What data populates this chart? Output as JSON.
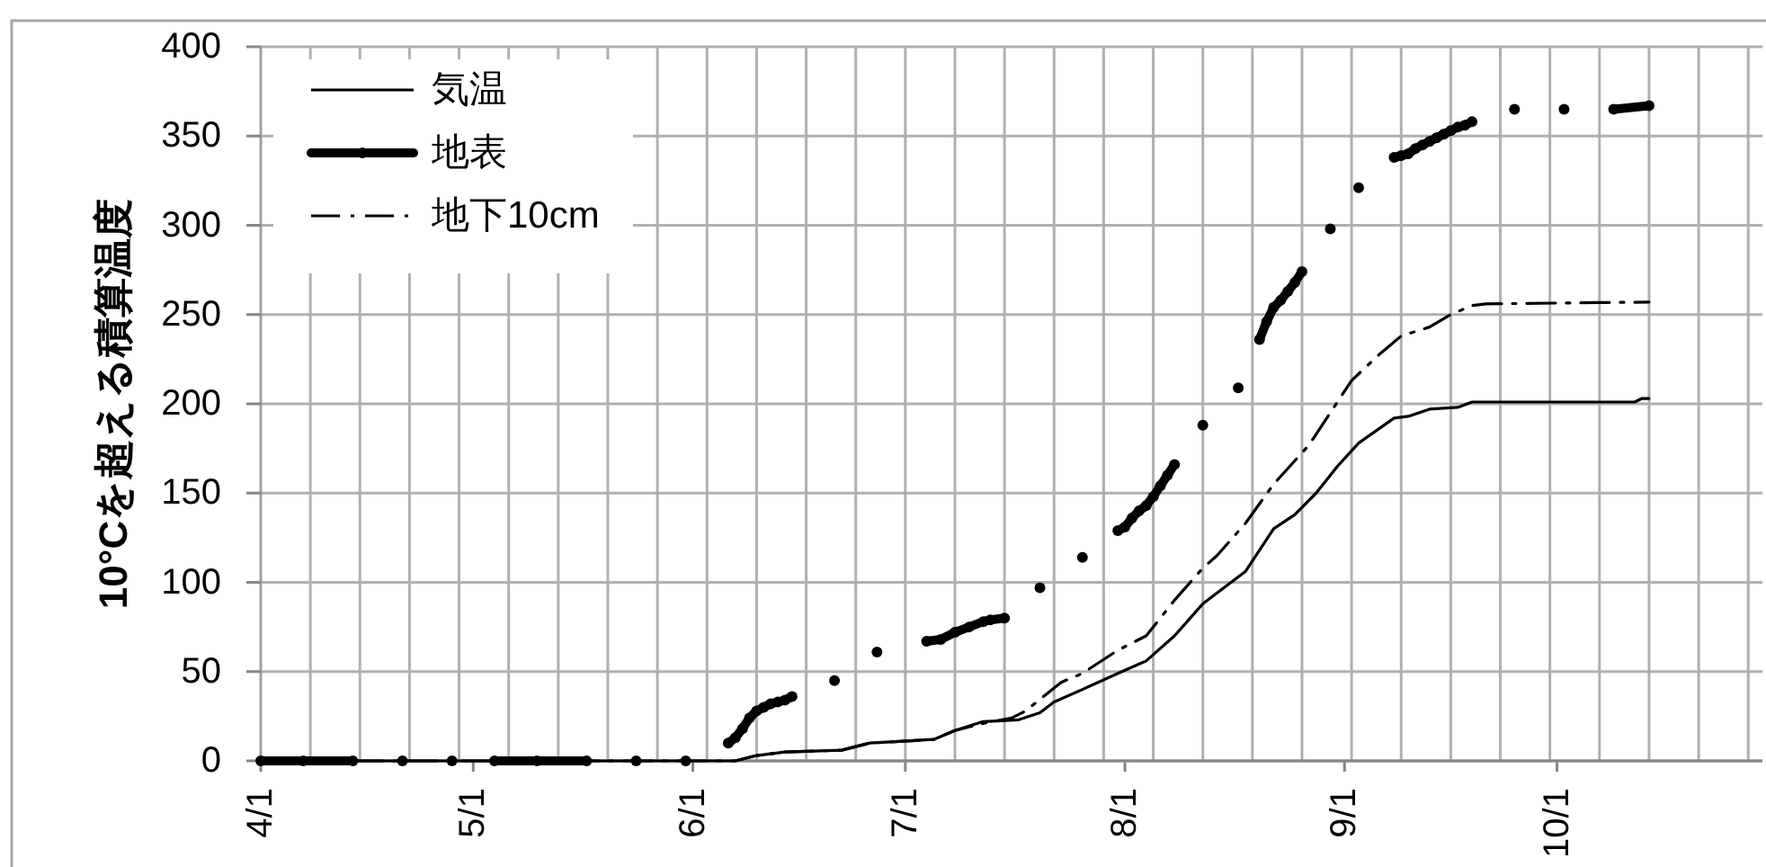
{
  "chart_data": {
    "type": "line",
    "ylabel": "10°Cを超える積算温度",
    "xlim": [
      "--04-01",
      "--10-30"
    ],
    "ylim": [
      0,
      400
    ],
    "yticks": [
      0,
      50,
      100,
      150,
      200,
      250,
      300,
      350,
      400
    ],
    "xticks": [
      {
        "value": "--04-01",
        "label": "4/1"
      },
      {
        "value": "--04-08",
        "label": null
      },
      {
        "value": "--04-15",
        "label": null
      },
      {
        "value": "--04-22",
        "label": null
      },
      {
        "value": "--04-29",
        "label": null
      },
      {
        "value": "--05-01",
        "label": "5/1"
      },
      {
        "value": "--05-06",
        "label": null
      },
      {
        "value": "--05-13",
        "label": null
      },
      {
        "value": "--05-20",
        "label": null
      },
      {
        "value": "--05-27",
        "label": null
      },
      {
        "value": "--06-01",
        "label": "6/1"
      },
      {
        "value": "--06-03",
        "label": null
      },
      {
        "value": "--06-10",
        "label": null
      },
      {
        "value": "--06-17",
        "label": null
      },
      {
        "value": "--06-24",
        "label": null
      },
      {
        "value": "--07-01",
        "label": "7/1"
      },
      {
        "value": "--07-01",
        "label": null
      },
      {
        "value": "--07-08",
        "label": null
      },
      {
        "value": "--07-15",
        "label": null
      },
      {
        "value": "--07-22",
        "label": null
      },
      {
        "value": "--07-29",
        "label": null
      },
      {
        "value": "--08-01",
        "label": "8/1"
      },
      {
        "value": "--08-05",
        "label": null
      },
      {
        "value": "--08-12",
        "label": null
      },
      {
        "value": "--08-19",
        "label": null
      },
      {
        "value": "--08-26",
        "label": null
      },
      {
        "value": "--09-01",
        "label": "9/1"
      },
      {
        "value": "--09-02",
        "label": null
      },
      {
        "value": "--09-09",
        "label": null
      },
      {
        "value": "--09-16",
        "label": null
      },
      {
        "value": "--09-23",
        "label": null
      },
      {
        "value": "--09-30",
        "label": null
      },
      {
        "value": "--10-01",
        "label": "10/1"
      },
      {
        "value": "--10-07",
        "label": null
      },
      {
        "value": "--10-14",
        "label": null
      },
      {
        "value": "--10-21",
        "label": null
      },
      {
        "value": "--10-28",
        "label": null
      }
    ],
    "grid": true,
    "legend": "top left",
    "series": [
      {
        "name": "気温",
        "color": "#000000",
        "line_style": "solid",
        "x": [
          "--04-01",
          "--06-07",
          "--06-10",
          "--06-14",
          "--06-22",
          "--06-26",
          "--07-05",
          "--07-08",
          "--07-12",
          "--07-17",
          "--07-20",
          "--07-22",
          "--07-26",
          "--07-31",
          "--08-04",
          "--08-08",
          "--08-12",
          "--08-18",
          "--08-22",
          "--08-25",
          "--08-28",
          "--08-31",
          "--09-03",
          "--09-08",
          "--09-10",
          "--09-13",
          "--09-17",
          "--09-19",
          "--10-12",
          "--10-13",
          "--10-14"
        ],
        "values": [
          0,
          0,
          3,
          5,
          6,
          10,
          12,
          17,
          22,
          23,
          27,
          33,
          40,
          49,
          56,
          70,
          88,
          106,
          130,
          138,
          150,
          165,
          178,
          192,
          193,
          197,
          198,
          201,
          201,
          203,
          203
        ]
      },
      {
        "name": "地表",
        "color": "#000000",
        "line_style": "solid",
        "marker": "circle",
        "x": [
          "--04-01",
          "--04-07",
          "--04-14",
          "--04-17",
          "--04-21",
          "--04-24",
          "--04-28",
          "--05-01",
          "--05-04",
          "--05-10",
          "--05-17",
          "--05-20",
          "--05-24",
          "--05-27",
          "--05-31",
          "--06-03",
          "--06-06",
          "--06-07",
          "--06-08",
          "--06-09",
          "--06-10",
          "--06-11",
          "--06-12",
          "--06-13",
          "--06-14",
          "--06-15",
          "--06-18",
          "--06-21",
          "--06-24",
          "--06-27",
          "--06-30",
          "--07-04",
          "--07-06",
          "--07-08",
          "--07-10",
          "--07-12",
          "--07-13",
          "--07-15",
          "--07-18",
          "--07-20",
          "--07-23",
          "--07-26",
          "--07-28",
          "--07-31",
          "--08-01",
          "--08-02",
          "--08-03",
          "--08-04",
          "--08-05",
          "--08-06",
          "--08-07",
          "--08-08",
          "--08-10",
          "--08-12",
          "--08-14",
          "--08-17",
          "--08-19",
          "--08-20",
          "--08-21",
          "--08-22",
          "--08-23",
          "--08-24",
          "--08-25",
          "--08-26",
          "--08-28",
          "--08-30",
          "--09-01",
          "--09-03",
          "--09-06",
          "--09-08",
          "--09-09",
          "--09-10",
          "--09-11",
          "--09-12",
          "--09-13",
          "--09-14",
          "--09-15",
          "--09-16",
          "--09-17",
          "--09-18",
          "--09-19",
          "--09-22",
          "--09-25",
          "--09-28",
          "--10-02",
          "--10-05",
          "--10-09",
          "--10-14"
        ],
        "values": [
          0,
          0,
          0,
          null,
          0,
          null,
          0,
          null,
          0,
          0,
          0,
          null,
          0,
          null,
          0,
          null,
          10,
          13,
          18,
          24,
          28,
          30,
          32,
          33,
          34,
          36,
          null,
          45,
          null,
          61,
          null,
          67,
          68,
          72,
          75,
          78,
          79,
          80,
          null,
          97,
          null,
          114,
          null,
          129,
          131,
          136,
          140,
          143,
          148,
          154,
          160,
          166,
          null,
          188,
          null,
          209,
          null,
          236,
          246,
          254,
          258,
          263,
          268,
          274,
          null,
          298,
          null,
          321,
          null,
          338,
          339,
          340,
          343,
          345,
          347,
          349,
          351,
          353,
          355,
          356,
          358,
          null,
          365,
          null,
          365,
          null,
          365,
          367
        ]
      },
      {
        "name": "地下10cm",
        "color": "#000000",
        "line_style": "dashdot",
        "x": [
          "--04-01",
          "--06-07",
          "--06-10",
          "--06-14",
          "--06-22",
          "--06-26",
          "--07-05",
          "--07-08",
          "--07-12",
          "--07-16",
          "--07-18",
          "--07-23",
          "--07-26",
          "--07-31",
          "--08-04",
          "--08-08",
          "--08-12",
          "--08-14",
          "--08-18",
          "--08-22",
          "--08-27",
          "--09-02",
          "--09-06",
          "--09-09",
          "--09-13",
          "--09-16",
          "--09-19",
          "--09-21",
          "--10-14"
        ],
        "values": [
          0,
          0,
          3,
          5,
          6,
          10,
          12,
          17,
          21,
          24,
          28,
          44,
          49,
          62,
          70,
          90,
          108,
          115,
          133,
          155,
          177,
          213,
          228,
          238,
          243,
          250,
          255,
          256,
          257
        ]
      }
    ]
  }
}
